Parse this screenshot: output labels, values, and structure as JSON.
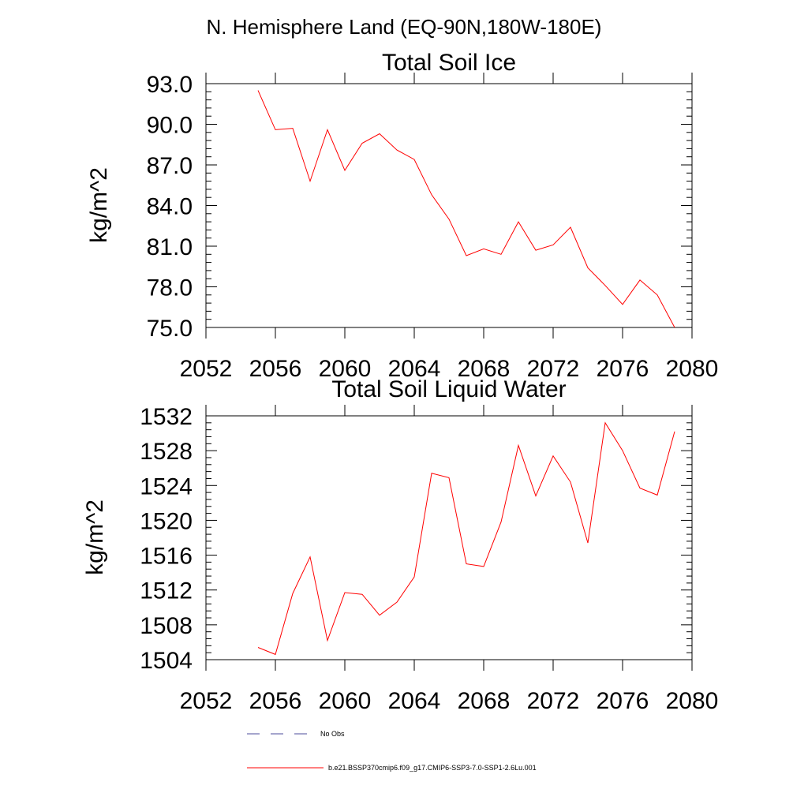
{
  "header": {
    "region_title": "N. Hemisphere Land (EQ-90N,180W-180E)"
  },
  "chart_data": [
    {
      "type": "line",
      "title": "Total Soil Ice",
      "ylabel": "kg/m^2",
      "xlabel": "",
      "xlim": [
        2052,
        2080
      ],
      "ylim": [
        75.0,
        93.0
      ],
      "x_ticks": [
        "2052",
        "2056",
        "2060",
        "2064",
        "2068",
        "2072",
        "2076",
        "2080"
      ],
      "y_ticks": [
        "75.0",
        "78.0",
        "81.0",
        "84.0",
        "87.0",
        "90.0",
        "93.0"
      ],
      "x_tick_values": [
        2052,
        2056,
        2060,
        2064,
        2068,
        2072,
        2076,
        2080
      ],
      "y_tick_values": [
        75,
        78,
        81,
        84,
        87,
        90,
        93
      ],
      "grid": false,
      "series": [
        {
          "name": "b.e21.BSSP370cmip6.f09_g17.CMIP6-SSP3-7.0-SSP1-2.6Lu.001",
          "color": "#ff0000",
          "x": [
            2055,
            2056,
            2057,
            2058,
            2059,
            2060,
            2061,
            2062,
            2063,
            2064,
            2065,
            2066,
            2067,
            2068,
            2069,
            2070,
            2071,
            2072,
            2073,
            2074,
            2075,
            2076,
            2077,
            2078,
            2079
          ],
          "y": [
            92.5,
            89.6,
            89.7,
            85.8,
            89.6,
            86.6,
            88.6,
            89.3,
            88.1,
            87.4,
            84.8,
            83.0,
            80.3,
            80.8,
            80.4,
            82.8,
            80.7,
            81.1,
            82.4,
            79.4,
            78.1,
            76.7,
            78.5,
            77.4,
            75.0
          ]
        }
      ]
    },
    {
      "type": "line",
      "title": "Total Soil Liquid Water",
      "ylabel": "kg/m^2",
      "xlabel": "",
      "xlim": [
        2052,
        2080
      ],
      "ylim": [
        1504,
        1532
      ],
      "x_ticks": [
        "2052",
        "2056",
        "2060",
        "2064",
        "2068",
        "2072",
        "2076",
        "2080"
      ],
      "y_ticks": [
        "1504",
        "1508",
        "1512",
        "1516",
        "1520",
        "1524",
        "1528",
        "1532"
      ],
      "x_tick_values": [
        2052,
        2056,
        2060,
        2064,
        2068,
        2072,
        2076,
        2080
      ],
      "y_tick_values": [
        1504,
        1508,
        1512,
        1516,
        1520,
        1524,
        1528,
        1532
      ],
      "grid": false,
      "series": [
        {
          "name": "b.e21.BSSP370cmip6.f09_g17.CMIP6-SSP3-7.0-SSP1-2.6Lu.001",
          "color": "#ff0000",
          "x": [
            2055,
            2056,
            2057,
            2058,
            2059,
            2060,
            2061,
            2062,
            2063,
            2064,
            2065,
            2066,
            2067,
            2068,
            2069,
            2070,
            2071,
            2072,
            2073,
            2074,
            2075,
            2076,
            2077,
            2078,
            2079
          ],
          "y": [
            1505.4,
            1504.6,
            1511.6,
            1515.8,
            1506.2,
            1511.7,
            1511.5,
            1509.1,
            1510.6,
            1513.5,
            1525.4,
            1524.9,
            1515.0,
            1514.7,
            1519.8,
            1528.6,
            1522.8,
            1527.4,
            1524.4,
            1517.4,
            1531.2,
            1528.0,
            1523.7,
            1522.9,
            1530.2
          ]
        }
      ]
    }
  ],
  "legend": {
    "placement": "bottom",
    "entries": [
      {
        "label": "No Obs",
        "color": "#4b4b9b",
        "style": "dashed"
      },
      {
        "label": "b.e21.BSSP370cmip6.f09_g17.CMIP6-SSP3-7.0-SSP1-2.6Lu.001",
        "color": "#ff0000",
        "style": "solid"
      }
    ]
  }
}
